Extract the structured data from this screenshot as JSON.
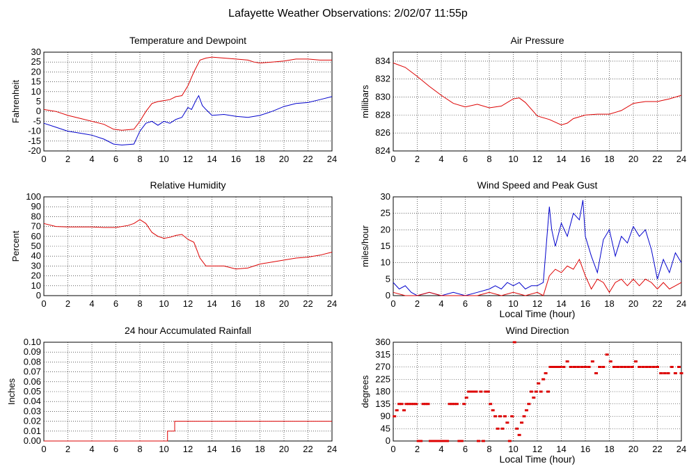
{
  "title": "Lafayette Weather Observations: 2/02/07 11:55p",
  "colors": {
    "red": "#dd0000",
    "blue": "#0000cc",
    "grid": "#000000",
    "background": "#ffffff"
  },
  "chart_data": [
    {
      "type": "line",
      "title": "Temperature and Dewpoint",
      "xlabel": "",
      "ylabel": "Fahrenheit",
      "xlim": [
        0,
        24
      ],
      "ylim": [
        -20,
        30
      ],
      "xticks": [
        0,
        2,
        4,
        6,
        8,
        10,
        12,
        14,
        16,
        18,
        20,
        22,
        24
      ],
      "yticks": [
        -20,
        -15,
        -10,
        -5,
        0,
        5,
        10,
        15,
        20,
        25,
        30
      ],
      "series": [
        {
          "name": "Temperature",
          "color": "red",
          "x": [
            0,
            1,
            2,
            3,
            4,
            5,
            5.8,
            6.5,
            7.5,
            8,
            8.5,
            9,
            9.5,
            10,
            10.5,
            11,
            11.5,
            12,
            12.5,
            13,
            13.5,
            14,
            15,
            16,
            17,
            17.5,
            18,
            19,
            20,
            21,
            22,
            23,
            24
          ],
          "y": [
            1,
            0,
            -2,
            -3.5,
            -5,
            -6.5,
            -9,
            -9.5,
            -9,
            -5,
            0,
            4,
            5,
            5.5,
            6,
            7.5,
            8,
            13,
            20,
            26,
            27,
            27.5,
            27,
            26.5,
            26,
            25,
            24.5,
            25,
            25.5,
            26.5,
            26.5,
            26,
            26
          ]
        },
        {
          "name": "Dewpoint",
          "color": "blue",
          "x": [
            0,
            1,
            2,
            3,
            4,
            5,
            5.8,
            6.5,
            7.5,
            8,
            8.5,
            9,
            9.5,
            10,
            10.5,
            11,
            11.5,
            12,
            12.3,
            12.7,
            12.9,
            13.2,
            13.5,
            14,
            15,
            16,
            17,
            18,
            19,
            20,
            21,
            22,
            23,
            24
          ],
          "y": [
            -6,
            -8,
            -10,
            -11,
            -12,
            -14,
            -16.5,
            -17,
            -16.5,
            -10,
            -6,
            -5,
            -7,
            -5,
            -6,
            -4,
            -3,
            2,
            1,
            6,
            8,
            3,
            1,
            -2,
            -1.5,
            -2.5,
            -3,
            -2,
            0,
            2.5,
            4,
            4.5,
            6,
            7.5
          ]
        }
      ]
    },
    {
      "type": "line",
      "title": "Air Pressure",
      "xlabel": "",
      "ylabel": "millibars",
      "xlim": [
        0,
        24
      ],
      "ylim": [
        824,
        835
      ],
      "xticks": [
        0,
        2,
        4,
        6,
        8,
        10,
        12,
        14,
        16,
        18,
        20,
        22,
        24
      ],
      "yticks": [
        824,
        826,
        828,
        830,
        832,
        834
      ],
      "series": [
        {
          "name": "Pressure",
          "color": "red",
          "x": [
            0,
            1,
            2,
            3,
            4,
            5,
            6,
            7,
            8,
            9,
            10,
            10.5,
            11,
            12,
            13,
            14,
            14.5,
            15,
            16,
            17,
            18,
            19,
            20,
            21,
            22,
            23,
            24
          ],
          "y": [
            833.8,
            833.3,
            832.3,
            831.2,
            830.2,
            829.3,
            828.9,
            829.2,
            828.8,
            829,
            829.8,
            829.9,
            829.4,
            827.9,
            827.5,
            826.9,
            827.1,
            827.6,
            828,
            828.1,
            828.1,
            828.5,
            829.3,
            829.5,
            829.5,
            829.8,
            830.2
          ]
        }
      ]
    },
    {
      "type": "line",
      "title": "Relative Humidity",
      "xlabel": "",
      "ylabel": "Percent",
      "xlim": [
        0,
        24
      ],
      "ylim": [
        0,
        100
      ],
      "xticks": [
        0,
        2,
        4,
        6,
        8,
        10,
        12,
        14,
        16,
        18,
        20,
        22,
        24
      ],
      "yticks": [
        0,
        10,
        20,
        30,
        40,
        50,
        60,
        70,
        80,
        90,
        100
      ],
      "series": [
        {
          "name": "Relative Humidity",
          "color": "red",
          "x": [
            0,
            1,
            2,
            3,
            4,
            5,
            6,
            7,
            7.5,
            8,
            8.5,
            9,
            9.5,
            10,
            10.5,
            11,
            11.5,
            12,
            12.5,
            13,
            13.5,
            14,
            15,
            16,
            17,
            18,
            19,
            20,
            21,
            22,
            23,
            24
          ],
          "y": [
            73,
            70,
            69.5,
            69.5,
            69.5,
            69,
            69,
            71,
            73,
            77,
            73,
            64,
            60,
            58,
            59,
            61,
            62,
            57,
            54,
            38,
            30,
            30,
            30,
            27,
            28,
            32,
            34,
            36,
            38,
            39,
            41,
            44
          ]
        }
      ]
    },
    {
      "type": "line",
      "title": "Wind Speed and Peak Gust",
      "xlabel": "Local Time (hour)",
      "ylabel": "miles/hour",
      "xlim": [
        0,
        24
      ],
      "ylim": [
        0,
        30
      ],
      "xticks": [
        0,
        2,
        4,
        6,
        8,
        10,
        12,
        14,
        16,
        18,
        20,
        22,
        24
      ],
      "yticks": [
        0,
        5,
        10,
        15,
        20,
        25,
        30
      ],
      "series": [
        {
          "name": "Peak Gust",
          "color": "blue",
          "x": [
            0,
            0.5,
            1,
            1.5,
            2,
            3,
            4,
            5,
            6,
            7,
            8,
            8.5,
            9,
            9.5,
            10,
            10.5,
            11,
            11.5,
            12,
            12.5,
            13,
            13.2,
            13.5,
            14,
            14.5,
            15,
            15.5,
            15.8,
            16,
            16.5,
            17,
            17.5,
            18,
            18.5,
            19,
            19.5,
            20,
            20.5,
            21,
            21.5,
            22,
            22.5,
            23,
            23.5,
            24
          ],
          "y": [
            4,
            2,
            3,
            1,
            0,
            1,
            0,
            1,
            0,
            1,
            2,
            3,
            2,
            4,
            3,
            4,
            2,
            3,
            3,
            4,
            27,
            20,
            15,
            22,
            18,
            25,
            23,
            29,
            18,
            12,
            7,
            17,
            20,
            12,
            18,
            16,
            21,
            18,
            20,
            14,
            5,
            11,
            7,
            13,
            10
          ]
        },
        {
          "name": "Wind Speed",
          "color": "red",
          "x": [
            0,
            1,
            2,
            3,
            4,
            5,
            6,
            7,
            8,
            9,
            10,
            11,
            12,
            12.5,
            13,
            13.5,
            14,
            14.5,
            15,
            15.5,
            16,
            16.5,
            17,
            17.5,
            18,
            18.5,
            19,
            19.5,
            20,
            20.5,
            21,
            21.5,
            22,
            22.5,
            23,
            23.5,
            24
          ],
          "y": [
            1,
            0,
            0,
            1,
            0,
            0,
            0,
            0,
            1,
            0,
            1,
            0,
            1,
            0,
            6,
            8,
            7,
            9,
            8,
            11,
            6,
            2,
            5,
            4,
            1,
            4,
            5,
            3,
            5,
            3,
            5,
            4,
            2,
            4,
            2,
            3,
            4
          ]
        }
      ]
    },
    {
      "type": "line",
      "title": "24 hour Accumulated Rainfall",
      "xlabel": "",
      "ylabel": "Inches",
      "xlim": [
        0,
        24
      ],
      "ylim": [
        0,
        0.1
      ],
      "xticks": [
        0,
        2,
        4,
        6,
        8,
        10,
        12,
        14,
        16,
        18,
        20,
        22,
        24
      ],
      "yticks": [
        "0.00",
        "0.01",
        "0.02",
        "0.03",
        "0.04",
        "0.05",
        "0.06",
        "0.07",
        "0.08",
        "0.09",
        "0.10"
      ],
      "series": [
        {
          "name": "Rainfall",
          "color": "red",
          "x": [
            0,
            10.2,
            10.3,
            10.3,
            10.9,
            10.9,
            24
          ],
          "y": [
            0,
            0,
            0,
            0.01,
            0.01,
            0.02,
            0.02
          ]
        }
      ]
    },
    {
      "type": "scatter",
      "title": "Wind Direction",
      "xlabel": "Local Time (hour)",
      "ylabel": "degrees",
      "xlim": [
        0,
        24
      ],
      "ylim": [
        0,
        360
      ],
      "xticks": [
        0,
        2,
        4,
        6,
        8,
        10,
        12,
        14,
        16,
        18,
        20,
        22,
        24
      ],
      "yticks": [
        0,
        45,
        90,
        135,
        180,
        225,
        270,
        315,
        360
      ],
      "series": [
        {
          "name": "Wind Direction",
          "color": "red",
          "x": [
            0.1,
            0.3,
            0.5,
            0.7,
            0.9,
            1.1,
            1.3,
            1.5,
            1.7,
            1.9,
            2.1,
            2.3,
            2.5,
            2.7,
            2.9,
            3.1,
            3.3,
            3.5,
            3.7,
            3.9,
            4.1,
            4.3,
            4.5,
            4.7,
            4.9,
            5.1,
            5.3,
            5.5,
            5.7,
            5.9,
            6.1,
            6.3,
            6.5,
            6.7,
            6.9,
            7.1,
            7.3,
            7.5,
            7.7,
            7.9,
            8.1,
            8.3,
            8.5,
            8.7,
            8.9,
            9.1,
            9.3,
            9.5,
            9.7,
            9.9,
            10.1,
            10.3,
            10.5,
            10.7,
            10.9,
            11.1,
            11.3,
            11.5,
            11.7,
            11.9,
            12.1,
            12.3,
            12.5,
            12.7,
            12.9,
            13.1,
            13.3,
            13.5,
            13.7,
            13.9,
            14.2,
            14.5,
            14.8,
            15.1,
            15.4,
            15.7,
            16.0,
            16.3,
            16.6,
            16.9,
            17.2,
            17.5,
            17.8,
            18.1,
            18.4,
            18.7,
            19.0,
            19.3,
            19.6,
            19.9,
            20.2,
            20.5,
            20.8,
            21.1,
            21.4,
            21.7,
            22.0,
            22.3,
            22.6,
            22.9,
            23.2,
            23.5,
            23.8,
            24.0
          ],
          "y": [
            90,
            112,
            135,
            135,
            112,
            135,
            135,
            135,
            135,
            135,
            0,
            0,
            135,
            135,
            135,
            0,
            0,
            0,
            0,
            0,
            0,
            0,
            0,
            135,
            135,
            135,
            135,
            0,
            0,
            135,
            158,
            180,
            180,
            180,
            180,
            0,
            180,
            0,
            180,
            180,
            135,
            112,
            90,
            45,
            90,
            45,
            90,
            67,
            0,
            90,
            360,
            45,
            22,
            67,
            90,
            112,
            135,
            180,
            158,
            180,
            210,
            180,
            225,
            247,
            180,
            270,
            270,
            270,
            270,
            270,
            270,
            290,
            270,
            270,
            270,
            270,
            270,
            270,
            290,
            247,
            270,
            270,
            315,
            290,
            270,
            270,
            270,
            270,
            270,
            270,
            290,
            270,
            270,
            270,
            270,
            270,
            270,
            247,
            247,
            247,
            270,
            247,
            270,
            247
          ]
        }
      ]
    }
  ]
}
